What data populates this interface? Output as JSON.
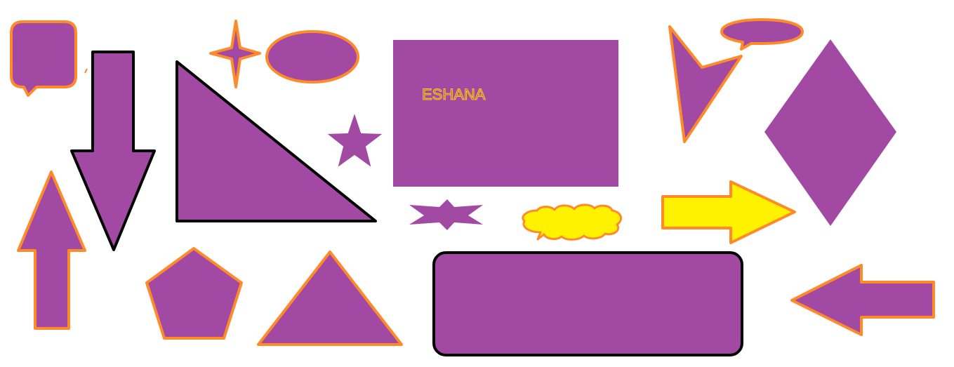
{
  "colors": {
    "background": "#ffffff",
    "fill": "#A249A4",
    "outline_orange": "#FF8A2A",
    "outline_black": "#000000",
    "accent_yellow": "#FFF200",
    "text_yellow": "#FFC90E"
  },
  "rectangle": {
    "label": "ESHANA"
  },
  "shapes": [
    "speech-bubble-rounded",
    "arrow-down",
    "right-triangle",
    "four-point-star",
    "ellipse",
    "five-point-star",
    "rectangle",
    "callout-triangle",
    "speech-bubble-oval",
    "diamond",
    "arrow-up",
    "six-point-star",
    "cloud-callout",
    "arrow-right",
    "pentagon",
    "triangle",
    "rounded-rectangle",
    "arrow-left"
  ]
}
